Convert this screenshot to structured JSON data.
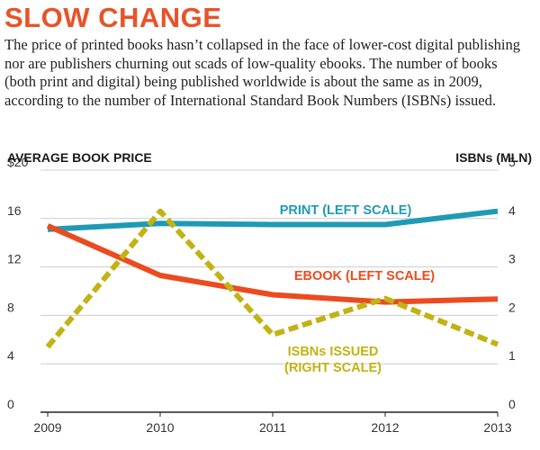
{
  "header": {
    "title": "SLOW CHANGE",
    "subtitle": "The price of printed books hasn’t collapsed in the face of lower-cost digital publishing nor are publishers churning out scads of low-quality ebooks. The number of books (both print and digital) being published worldwide is about the same as in 2009, according to the number of International Standard Book Numbers (ISBNs) issued."
  },
  "colors": {
    "title": "#e8532a",
    "print": "#1e9ab5",
    "ebook": "#eb4b1f",
    "isbn": "#c2b214",
    "grid": "#cccccc",
    "axis": "#333333"
  },
  "chart_data": {
    "type": "line",
    "x": [
      "2009",
      "2010",
      "2011",
      "2012",
      "2013"
    ],
    "left_axis": {
      "title": "AVERAGE BOOK PRICE",
      "ylim": [
        0,
        20
      ],
      "ticks": [
        0,
        4,
        8,
        12,
        16,
        20
      ],
      "tick_labels": [
        "0",
        "4",
        "8",
        "12",
        "16",
        "$20"
      ]
    },
    "right_axis": {
      "title": "ISBNs (MLN)",
      "ylim": [
        0,
        5
      ],
      "ticks": [
        0,
        1,
        2,
        3,
        4,
        5
      ],
      "tick_labels": [
        "0",
        "1",
        "2",
        "3",
        "4",
        "5"
      ]
    },
    "series": [
      {
        "name": "PRINT (LEFT SCALE)",
        "label_lines": [
          "PRINT (LEFT SCALE)"
        ],
        "axis": "left",
        "style": "solid",
        "color": "#1e9ab5",
        "values": [
          15.1,
          15.6,
          15.5,
          15.5,
          16.6
        ]
      },
      {
        "name": "EBOOK (LEFT SCALE)",
        "label_lines": [
          "EBOOK (LEFT SCALE)"
        ],
        "axis": "left",
        "style": "solid",
        "color": "#eb4b1f",
        "values": [
          15.4,
          11.3,
          9.7,
          9.1,
          9.35
        ]
      },
      {
        "name": "ISBNs ISSUED (RIGHT SCALE)",
        "label_lines": [
          "ISBNs ISSUED",
          "(RIGHT SCALE)"
        ],
        "axis": "right",
        "style": "dashed",
        "color": "#c2b214",
        "values": [
          1.35,
          4.15,
          1.6,
          2.35,
          1.4
        ]
      }
    ],
    "grid": true
  }
}
